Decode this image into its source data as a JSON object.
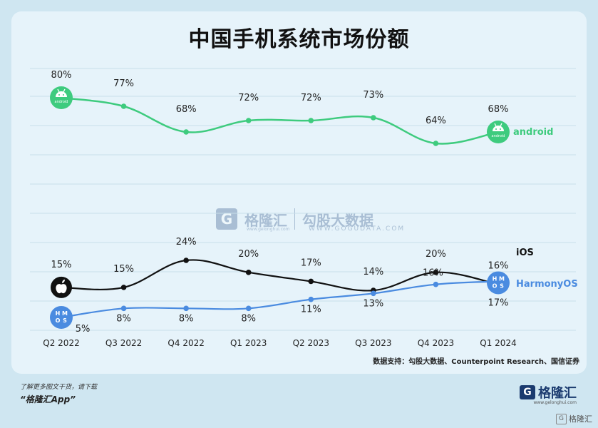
{
  "title": "中国手机系统市场份额",
  "chart_data": {
    "type": "line",
    "categories": [
      "Q2 2022",
      "Q3 2022",
      "Q4 2022",
      "Q1 2023",
      "Q2 2023",
      "Q3 2023",
      "Q4 2023",
      "Q1 2024"
    ],
    "series": [
      {
        "name": "android",
        "values": [
          80,
          77,
          68,
          72,
          72,
          73,
          64,
          68
        ],
        "labels": [
          "80%",
          "77%",
          "68%",
          "72%",
          "72%",
          "73%",
          "64%",
          "68%"
        ],
        "color": "#3ecb7e"
      },
      {
        "name": "iOS",
        "values": [
          15,
          15,
          24,
          20,
          17,
          14,
          20,
          16
        ],
        "labels": [
          "15%",
          "15%",
          "24%",
          "20%",
          "17%",
          "14%",
          "20%",
          "16%"
        ],
        "color": "#111111"
      },
      {
        "name": "HarmonyOS",
        "values": [
          5,
          8,
          8,
          8,
          11,
          13,
          16,
          17
        ],
        "labels": [
          "5%",
          "8%",
          "8%",
          "8%",
          "11%",
          "13%",
          "16%",
          "17%"
        ],
        "color": "#4a8be0"
      }
    ],
    "grid": true
  },
  "icons": {
    "android": "android-logo-icon",
    "apple": "apple-logo-icon",
    "harmony": "hmos-logo-icon"
  },
  "icon_text": {
    "android": "android",
    "harmony": [
      "H",
      "M",
      "O",
      "S"
    ]
  },
  "source": "数据支持：勾股大数据、Counterpoint Research、国信证券",
  "promo": {
    "line1": "了解更多图文干货，请下载",
    "line2": "“格隆汇App”"
  },
  "brand": {
    "mark": "G",
    "name": "格隆汇",
    "url": "www.gelonghui.com",
    "footer": "格隆汇"
  },
  "watermark": {
    "mark": "G",
    "name": "格隆汇",
    "name2": "勾股大数据",
    "url": "www.gelonghui.com",
    "url2": "WWW.GOGUDATA.COM"
  }
}
